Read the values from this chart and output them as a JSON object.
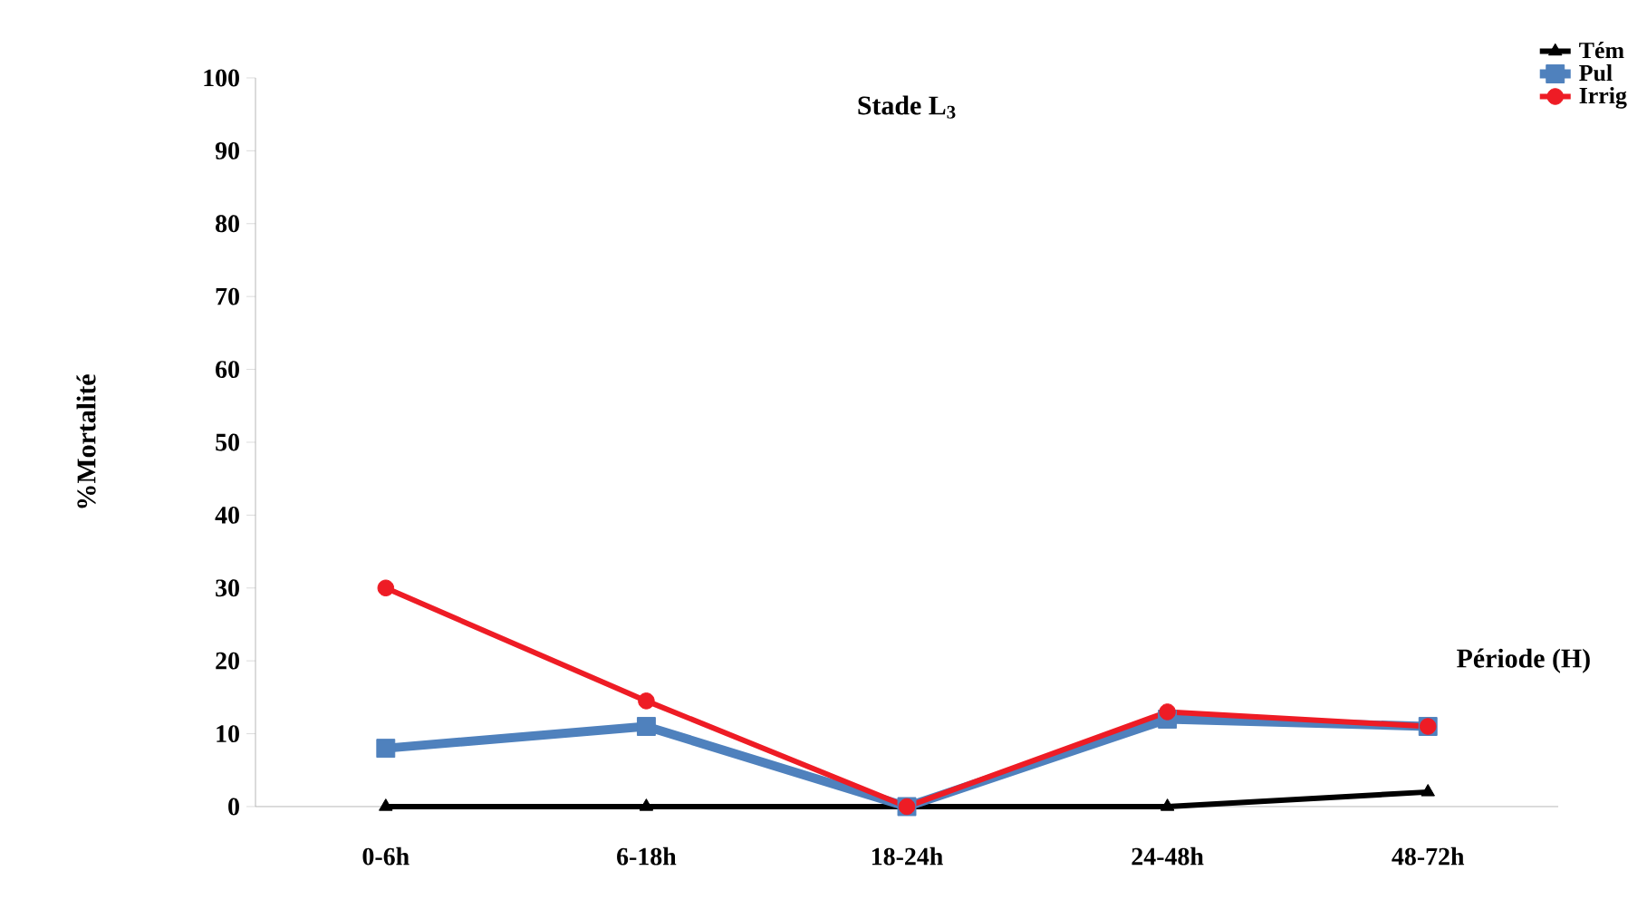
{
  "chart_data": {
    "type": "line",
    "title": "Stade L$_{3}$",
    "xlabel": "Période (H)",
    "ylabel": "%Mortalité",
    "categories": [
      "0-6h",
      "6-18h",
      "18-24h",
      "24-48h",
      "48-72h"
    ],
    "series": [
      {
        "name": "Tém",
        "color": "#000000",
        "marker": "triangle",
        "values": [
          0,
          0,
          0,
          0,
          2
        ]
      },
      {
        "name": "Pul",
        "color": "#4f81bd",
        "marker": "square",
        "values": [
          8,
          11,
          0,
          12,
          11
        ]
      },
      {
        "name": "Irrig",
        "color": "#ee1c25",
        "marker": "circle",
        "values": [
          30,
          14.5,
          0,
          13,
          11
        ]
      }
    ],
    "ylim": [
      0,
      100
    ],
    "yticks": [
      0,
      10,
      20,
      30,
      40,
      50,
      60,
      70,
      80,
      90,
      100
    ],
    "legend": "top right",
    "grid": false
  }
}
